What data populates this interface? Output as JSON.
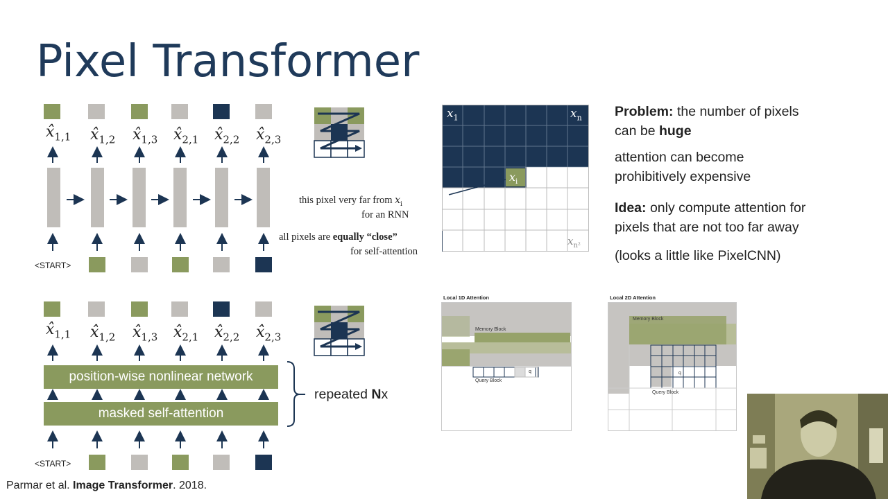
{
  "slide": {
    "title": "Pixel Transformer",
    "citation": {
      "authors": "Parmar et al.",
      "paper": "Image Transformer",
      "year": ". 2018."
    },
    "top_diagram": {
      "outputs": [
        "x̂",
        "x̂",
        "x̂",
        "x̂",
        "x̂",
        "x̂"
      ],
      "output_subs": [
        "1,1",
        "1,2",
        "1,3",
        "2,1",
        "2,2",
        "2,3"
      ],
      "start_label": "<START>"
    },
    "bottom_diagram": {
      "outputs": [
        "x̂",
        "x̂",
        "x̂",
        "x̂",
        "x̂",
        "x̂"
      ],
      "output_subs": [
        "1,1",
        "1,2",
        "1,3",
        "2,1",
        "2,2",
        "2,3"
      ],
      "layer_top": "position-wise nonlinear network",
      "layer_bottom": "masked self-attention",
      "repeated_prefix": "repeated ",
      "repeated_n": "N",
      "repeated_suffix": "x",
      "start_label": "<START>"
    },
    "grid": {
      "x1": "x",
      "x1_sub": "1",
      "xn": "x",
      "xn_sub": "n",
      "xi": "x",
      "xi_sub": "i",
      "xn2": "x",
      "xn2_sub": "n²",
      "note1_line1": "this pixel very far from",
      "note1_var": "x",
      "note1_var_sub": "i",
      "note1_line2": "for an RNN",
      "note2_prefix": "all pixels are",
      "note2_bold": "equally “close”",
      "note2_line2": "for self-attention"
    },
    "right_text": {
      "problem_label": "Problem:",
      "problem_text": "the number of pixels",
      "problem_line2_prefix": "can be",
      "problem_line2_bold": "huge",
      "attention_line1": "attention can become",
      "attention_line2": "prohibitively expensive",
      "idea_label": "Idea:",
      "idea_text": "only compute attention for",
      "idea_line2": "pixels that are not too far away",
      "aside": "(looks a little like PixelCNN)"
    },
    "local1d": {
      "title": "Local 1D Attention",
      "memory": "Memory Block",
      "query": "Query Block",
      "q": "q"
    },
    "local2d": {
      "title": "Local 2D Attention",
      "memory": "Memory Block",
      "query": "Query Block",
      "q": "q"
    },
    "colors": {
      "green": "#8a9a5e",
      "gray": "#c0bdb9",
      "navy": "#1c3553",
      "title": "#1f3a5a"
    }
  }
}
